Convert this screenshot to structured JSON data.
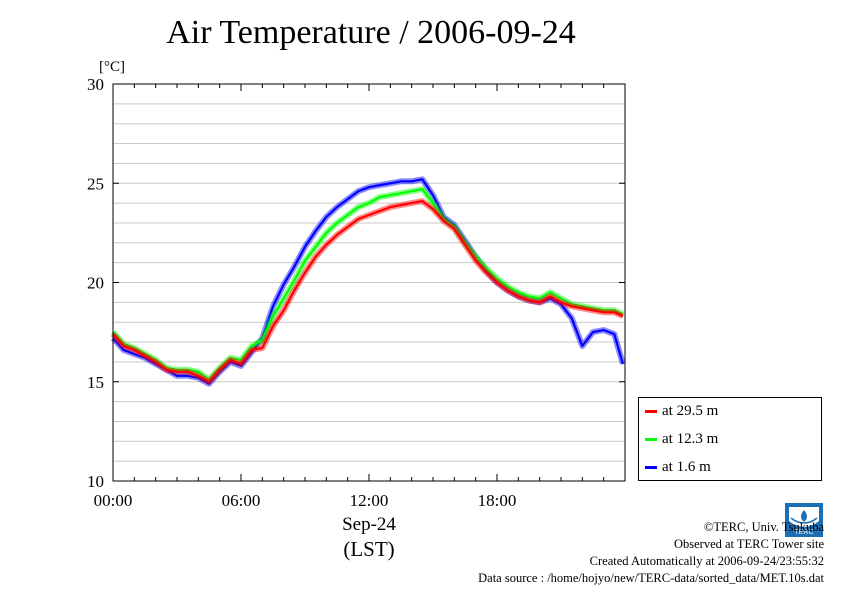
{
  "chart_data": {
    "type": "line",
    "title": "Air Temperature / 2006-09-24",
    "ylabel": "[°C]",
    "ylim": [
      10,
      30
    ],
    "yticks": [
      10,
      15,
      20,
      25,
      30
    ],
    "xlim": [
      0,
      24
    ],
    "xticks": [
      "00:00",
      "06:00",
      "12:00",
      "18:00"
    ],
    "xlabel_date": "Sep-24",
    "xlabel_tz": "(LST)",
    "grid": true,
    "legend_position": "right",
    "x": [
      0,
      0.5,
      1,
      1.5,
      2,
      2.5,
      3,
      3.5,
      4,
      4.5,
      5,
      5.5,
      6,
      6.5,
      7,
      7.5,
      8,
      8.5,
      9,
      9.5,
      10,
      10.5,
      11,
      11.5,
      12,
      12.5,
      13,
      13.5,
      14,
      14.5,
      15,
      15.5,
      16,
      16.5,
      17,
      17.5,
      18,
      18.5,
      19,
      19.5,
      20,
      20.5,
      21,
      21.5,
      22,
      22.5,
      23,
      23.5,
      23.9
    ],
    "series": [
      {
        "name": "at 29.5 m",
        "color": "#ff0000",
        "values": [
          17.4,
          16.8,
          16.6,
          16.3,
          16.0,
          15.6,
          15.5,
          15.5,
          15.3,
          15.0,
          15.6,
          16.1,
          15.9,
          16.6,
          16.7,
          17.8,
          18.6,
          19.6,
          20.5,
          21.3,
          21.9,
          22.4,
          22.8,
          23.2,
          23.4,
          23.6,
          23.8,
          23.9,
          24.0,
          24.1,
          23.7,
          23.1,
          22.7,
          21.9,
          21.1,
          20.5,
          20.0,
          19.6,
          19.3,
          19.1,
          19.0,
          19.3,
          19.0,
          18.8,
          18.7,
          18.6,
          18.5,
          18.5,
          18.3
        ]
      },
      {
        "name": "at 12.3 m",
        "color": "#00ff00",
        "values": [
          17.5,
          16.9,
          16.7,
          16.4,
          16.1,
          15.7,
          15.6,
          15.6,
          15.5,
          15.1,
          15.7,
          16.2,
          16.1,
          16.8,
          17.1,
          18.3,
          19.2,
          20.1,
          21.1,
          21.8,
          22.5,
          23.0,
          23.4,
          23.8,
          24.0,
          24.3,
          24.4,
          24.5,
          24.6,
          24.7,
          24.0,
          23.2,
          22.8,
          22.0,
          21.3,
          20.7,
          20.2,
          19.8,
          19.5,
          19.3,
          19.2,
          19.5,
          19.2,
          18.9,
          18.8,
          18.7,
          18.6,
          18.6,
          18.4
        ]
      },
      {
        "name": "at 1.6 m",
        "color": "#0000ff",
        "values": [
          17.2,
          16.6,
          16.4,
          16.2,
          15.9,
          15.6,
          15.3,
          15.3,
          15.2,
          14.9,
          15.5,
          16.0,
          15.8,
          16.5,
          17.2,
          18.8,
          19.9,
          20.8,
          21.8,
          22.6,
          23.3,
          23.8,
          24.2,
          24.6,
          24.8,
          24.9,
          25.0,
          25.1,
          25.1,
          25.2,
          24.4,
          23.3,
          22.9,
          22.1,
          21.3,
          20.6,
          20.0,
          19.6,
          19.3,
          19.1,
          19.0,
          19.2,
          18.9,
          18.2,
          16.8,
          17.5,
          17.6,
          17.4,
          15.9
        ]
      }
    ]
  },
  "credits": {
    "copyright": "©TERC, Univ. Tsukuba",
    "observed": "Observed at TERC Tower site",
    "created": "Created Automatically at 2006-09-24/23:55:32",
    "source": "Data source : /home/hojyo/new/TERC-data/sorted_data/MET.10s.dat"
  },
  "logo": {
    "text": "TERC",
    "color": "#1a6fb5"
  }
}
